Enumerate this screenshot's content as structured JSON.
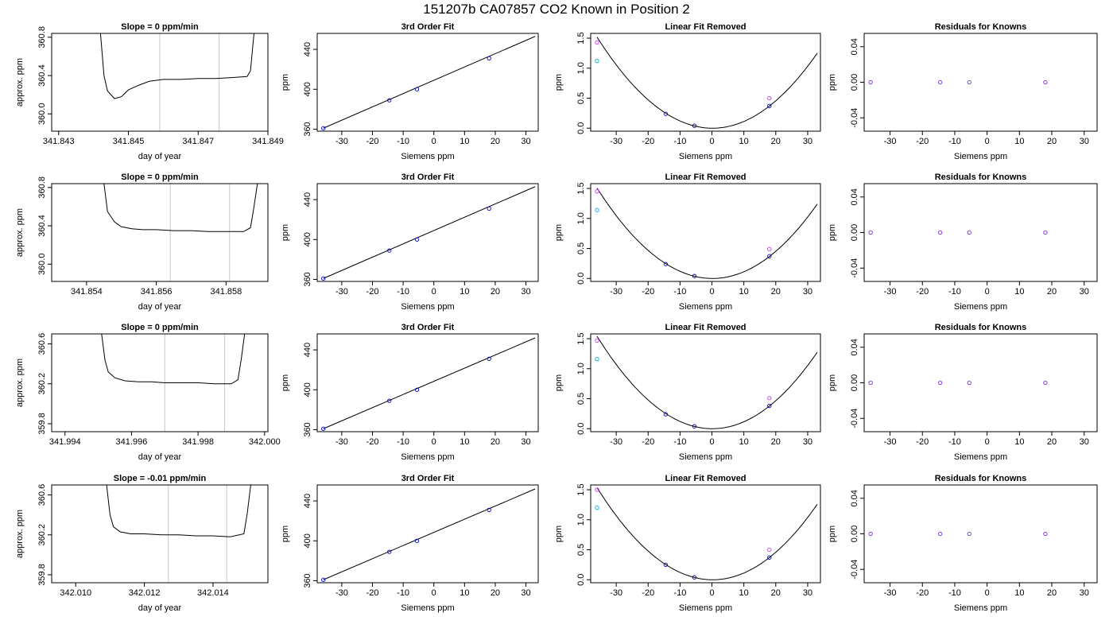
{
  "figure": {
    "title": "151207b     CA07857    CO2 Known in Position  2"
  },
  "chart_data": [
    {
      "type": "line",
      "title": "Slope =  0  ppm/min",
      "xlabel": "day of year",
      "ylabel": "approx. ppm",
      "xlim": [
        341.8428,
        341.849
      ],
      "ylim": [
        359.82,
        360.84
      ],
      "xticks": [
        341.843,
        341.845,
        341.847,
        341.849
      ],
      "xtick_labels": [
        "341.843",
        "341.845",
        "341.847",
        "341.849"
      ],
      "yticks": [
        360.0,
        360.4,
        360.8
      ],
      "ytick_labels": [
        "360.0",
        "360.4",
        "360.8"
      ],
      "vlines": [
        341.8459,
        341.8476
      ],
      "series": [
        {
          "x": [
            341.8442,
            341.8443,
            341.8444,
            341.8446,
            341.8448,
            341.845,
            341.8453,
            341.8456,
            341.846,
            341.8465,
            341.847,
            341.8475,
            341.848,
            341.8484,
            341.8485,
            341.8486
          ],
          "y": [
            360.84,
            360.4,
            360.24,
            360.16,
            360.18,
            360.25,
            360.3,
            360.34,
            360.36,
            360.36,
            360.37,
            360.37,
            360.38,
            360.39,
            360.45,
            360.84
          ]
        }
      ]
    },
    {
      "type": "scatter",
      "title": "3rd Order Fit",
      "xlabel": "Siemens ppm",
      "ylabel": "ppm",
      "xlim": [
        -38,
        34
      ],
      "ylim": [
        358,
        456
      ],
      "xticks": [
        -30,
        -20,
        -10,
        0,
        10,
        20,
        30
      ],
      "xtick_labels": [
        "-30",
        "-20",
        "-10",
        "0",
        "10",
        "20",
        "30"
      ],
      "yticks": [
        360,
        400,
        440
      ],
      "ytick_labels": [
        "360",
        "400",
        "440"
      ],
      "fit_line": {
        "x": [
          -36,
          33
        ],
        "y": [
          361,
          453
        ]
      },
      "points": {
        "x": [
          -36,
          -14.5,
          -5.5,
          18
        ],
        "y": [
          361,
          389,
          400,
          431
        ]
      }
    },
    {
      "type": "scatter",
      "title": "Linear Fit Removed",
      "xlabel": "Siemens ppm",
      "ylabel": "ppm",
      "xlim": [
        -38,
        34
      ],
      "ylim": [
        -0.05,
        1.58
      ],
      "xticks": [
        -30,
        -20,
        -10,
        0,
        10,
        20,
        30
      ],
      "xtick_labels": [
        "-30",
        "-20",
        "-10",
        "0",
        "10",
        "20",
        "30"
      ],
      "yticks": [
        0.0,
        0.5,
        1.0,
        1.5
      ],
      "ytick_labels": [
        "0.0",
        "0.5",
        "1.0",
        "1.5"
      ],
      "curve": {
        "a": 0.00116,
        "b": -0.0004,
        "c": 0.0
      },
      "points": [
        {
          "x": -36,
          "y": 1.43,
          "color": "#cc33ff"
        },
        {
          "x": -36,
          "y": 1.12,
          "color": "#00b0e0"
        },
        {
          "x": -14.5,
          "y": 0.24,
          "color": "#0000cc"
        },
        {
          "x": -5.5,
          "y": 0.04,
          "color": "#0000cc"
        },
        {
          "x": 18,
          "y": 0.37,
          "color": "#0000cc"
        },
        {
          "x": 18,
          "y": 0.5,
          "color": "#cc33ff"
        }
      ]
    },
    {
      "type": "scatter",
      "title": "Residuals for Knowns",
      "xlabel": "Siemens ppm",
      "ylabel": "ppm",
      "xlim": [
        -38,
        34
      ],
      "ylim": [
        -0.055,
        0.055
      ],
      "xticks": [
        -30,
        -20,
        -10,
        0,
        10,
        20,
        30
      ],
      "xtick_labels": [
        "-30",
        "-20",
        "-10",
        "0",
        "10",
        "20",
        "30"
      ],
      "yticks": [
        -0.04,
        0.0,
        0.04
      ],
      "ytick_labels": [
        "-0.04",
        "0.00",
        "0.04"
      ],
      "points": {
        "x": [
          -36,
          -14.5,
          -5.5,
          18
        ],
        "y": [
          0,
          0,
          0,
          0
        ]
      }
    },
    {
      "type": "line",
      "title": "Slope =  0  ppm/min",
      "xlabel": "day of year",
      "ylabel": "approx. ppm",
      "xlim": [
        341.853,
        341.8592
      ],
      "ylim": [
        359.82,
        360.84
      ],
      "xticks": [
        341.854,
        341.856,
        341.858
      ],
      "xtick_labels": [
        "341.854",
        "341.856",
        "341.858"
      ],
      "yticks": [
        360.0,
        360.4,
        360.8
      ],
      "ytick_labels": [
        "360.0",
        "360.4",
        "360.8"
      ],
      "vlines": [
        341.8564,
        341.8581
      ],
      "series": [
        {
          "x": [
            341.8545,
            341.8546,
            341.8548,
            341.855,
            341.8553,
            341.8556,
            341.856,
            341.8565,
            341.857,
            341.8575,
            341.858,
            341.8585,
            341.8587,
            341.8588,
            341.8589
          ],
          "y": [
            360.84,
            360.55,
            360.44,
            360.39,
            360.37,
            360.36,
            360.36,
            360.35,
            360.35,
            360.34,
            360.34,
            360.34,
            360.38,
            360.6,
            360.84
          ]
        }
      ]
    },
    {
      "type": "scatter",
      "title": "3rd Order Fit",
      "xlabel": "Siemens ppm",
      "ylabel": "ppm",
      "xlim": [
        -38,
        34
      ],
      "ylim": [
        358,
        456
      ],
      "xticks": [
        -30,
        -20,
        -10,
        0,
        10,
        20,
        30
      ],
      "xtick_labels": [
        "-30",
        "-20",
        "-10",
        "0",
        "10",
        "20",
        "30"
      ],
      "yticks": [
        360,
        400,
        440
      ],
      "ytick_labels": [
        "360",
        "400",
        "440"
      ],
      "fit_line": {
        "x": [
          -36,
          33
        ],
        "y": [
          361,
          453
        ]
      },
      "points": {
        "x": [
          -36,
          -14.5,
          -5.5,
          18
        ],
        "y": [
          361,
          389,
          400,
          431
        ]
      }
    },
    {
      "type": "scatter",
      "title": "Linear Fit Removed",
      "xlabel": "Siemens ppm",
      "ylabel": "ppm",
      "xlim": [
        -38,
        34
      ],
      "ylim": [
        -0.05,
        1.58
      ],
      "xticks": [
        -30,
        -20,
        -10,
        0,
        10,
        20,
        30
      ],
      "xtick_labels": [
        "-30",
        "-20",
        "-10",
        "0",
        "10",
        "20",
        "30"
      ],
      "yticks": [
        0.0,
        0.5,
        1.0,
        1.5
      ],
      "ytick_labels": [
        "0.0",
        "0.5",
        "1.0",
        "1.5"
      ],
      "curve": {
        "a": 0.00115,
        "b": -0.0004,
        "c": 0.0
      },
      "points": [
        {
          "x": -36,
          "y": 1.45,
          "color": "#cc33ff"
        },
        {
          "x": -36,
          "y": 1.14,
          "color": "#00b0e0"
        },
        {
          "x": -14.5,
          "y": 0.24,
          "color": "#0000cc"
        },
        {
          "x": -5.5,
          "y": 0.04,
          "color": "#0000cc"
        },
        {
          "x": 18,
          "y": 0.37,
          "color": "#0000cc"
        },
        {
          "x": 18,
          "y": 0.49,
          "color": "#cc33ff"
        }
      ]
    },
    {
      "type": "scatter",
      "title": "Residuals for Knowns",
      "xlabel": "Siemens ppm",
      "ylabel": "ppm",
      "xlim": [
        -38,
        34
      ],
      "ylim": [
        -0.055,
        0.055
      ],
      "xticks": [
        -30,
        -20,
        -10,
        0,
        10,
        20,
        30
      ],
      "xtick_labels": [
        "-30",
        "-20",
        "-10",
        "0",
        "10",
        "20",
        "30"
      ],
      "yticks": [
        -0.04,
        0.0,
        0.04
      ],
      "ytick_labels": [
        "-0.04",
        "0.00",
        "0.04"
      ],
      "points": {
        "x": [
          -36,
          -14.5,
          -5.5,
          18
        ],
        "y": [
          0,
          0,
          0,
          0
        ]
      }
    },
    {
      "type": "line",
      "title": "Slope =  0  ppm/min",
      "xlabel": "day of year",
      "ylabel": "approx. ppm",
      "xlim": [
        341.9936,
        342.0001
      ],
      "ylim": [
        359.72,
        360.7
      ],
      "xticks": [
        341.994,
        341.996,
        341.998,
        342.0
      ],
      "xtick_labels": [
        "341.994",
        "341.996",
        "341.998",
        "342.000"
      ],
      "yticks": [
        359.8,
        360.2,
        360.6
      ],
      "ytick_labels": [
        "359.8",
        "360.2",
        "360.6"
      ],
      "vlines": [
        341.997,
        341.9988
      ],
      "series": [
        {
          "x": [
            341.9951,
            341.9952,
            341.9953,
            341.9955,
            341.9958,
            341.9962,
            341.9966,
            341.997,
            341.9975,
            341.998,
            341.9985,
            341.999,
            341.9992,
            341.9993,
            341.9994
          ],
          "y": [
            360.7,
            360.44,
            360.32,
            360.26,
            360.23,
            360.22,
            360.22,
            360.21,
            360.21,
            360.21,
            360.2,
            360.2,
            360.24,
            360.45,
            360.7
          ]
        }
      ]
    },
    {
      "type": "scatter",
      "title": "3rd Order Fit",
      "xlabel": "Siemens ppm",
      "ylabel": "ppm",
      "xlim": [
        -38,
        34
      ],
      "ylim": [
        358,
        456
      ],
      "xticks": [
        -30,
        -20,
        -10,
        0,
        10,
        20,
        30
      ],
      "xtick_labels": [
        "-30",
        "-20",
        "-10",
        "0",
        "10",
        "20",
        "30"
      ],
      "yticks": [
        360,
        400,
        440
      ],
      "ytick_labels": [
        "360",
        "400",
        "440"
      ],
      "fit_line": {
        "x": [
          -36,
          33
        ],
        "y": [
          361,
          452
        ]
      },
      "points": {
        "x": [
          -36,
          -14.5,
          -5.5,
          18
        ],
        "y": [
          361,
          389,
          400,
          431
        ]
      }
    },
    {
      "type": "scatter",
      "title": "Linear Fit Removed",
      "xlabel": "Siemens ppm",
      "ylabel": "ppm",
      "xlim": [
        -38,
        34
      ],
      "ylim": [
        -0.05,
        1.58
      ],
      "xticks": [
        -30,
        -20,
        -10,
        0,
        10,
        20,
        30
      ],
      "xtick_labels": [
        "-30",
        "-20",
        "-10",
        "0",
        "10",
        "20",
        "30"
      ],
      "yticks": [
        0.0,
        0.5,
        1.0,
        1.5
      ],
      "ytick_labels": [
        "0.0",
        "0.5",
        "1.0",
        "1.5"
      ],
      "curve": {
        "a": 0.00118,
        "b": -0.0003,
        "c": 0.0
      },
      "points": [
        {
          "x": -36,
          "y": 1.47,
          "color": "#cc33ff"
        },
        {
          "x": -36,
          "y": 1.16,
          "color": "#00b0e0"
        },
        {
          "x": -14.5,
          "y": 0.24,
          "color": "#0000cc"
        },
        {
          "x": -5.5,
          "y": 0.04,
          "color": "#0000cc"
        },
        {
          "x": 18,
          "y": 0.38,
          "color": "#0000cc"
        },
        {
          "x": 18,
          "y": 0.51,
          "color": "#cc33ff"
        }
      ]
    },
    {
      "type": "scatter",
      "title": "Residuals for Knowns",
      "xlabel": "Siemens ppm",
      "ylabel": "ppm",
      "xlim": [
        -38,
        34
      ],
      "ylim": [
        -0.055,
        0.055
      ],
      "xticks": [
        -30,
        -20,
        -10,
        0,
        10,
        20,
        30
      ],
      "xtick_labels": [
        "-30",
        "-20",
        "-10",
        "0",
        "10",
        "20",
        "30"
      ],
      "yticks": [
        -0.04,
        0.0,
        0.04
      ],
      "ytick_labels": [
        "-0.04",
        "0.00",
        "0.04"
      ],
      "points": {
        "x": [
          -36,
          -14.5,
          -5.5,
          18
        ],
        "y": [
          0,
          0,
          0,
          0
        ]
      }
    },
    {
      "type": "line",
      "title": "Slope =  -0.01  ppm/min",
      "xlabel": "day of year",
      "ylabel": "approx. ppm",
      "xlim": [
        342.0093,
        342.0156
      ],
      "ylim": [
        359.72,
        360.7
      ],
      "xticks": [
        342.01,
        342.012,
        342.014
      ],
      "xtick_labels": [
        "342.010",
        "342.012",
        "342.014"
      ],
      "yticks": [
        359.8,
        360.2,
        360.6
      ],
      "ytick_labels": [
        "359.8",
        "360.2",
        "360.6"
      ],
      "vlines": [
        342.0127,
        342.0144
      ],
      "series": [
        {
          "x": [
            342.0109,
            342.011,
            342.0111,
            342.0113,
            342.0116,
            342.012,
            342.0125,
            342.013,
            342.0135,
            342.014,
            342.0145,
            342.0149,
            342.015,
            342.0151
          ],
          "y": [
            360.7,
            360.4,
            360.28,
            360.23,
            360.21,
            360.21,
            360.2,
            360.2,
            360.19,
            360.19,
            360.18,
            360.21,
            360.42,
            360.7
          ]
        }
      ]
    },
    {
      "type": "scatter",
      "title": "3rd Order Fit",
      "xlabel": "Siemens ppm",
      "ylabel": "ppm",
      "xlim": [
        -38,
        34
      ],
      "ylim": [
        358,
        456
      ],
      "xticks": [
        -30,
        -20,
        -10,
        0,
        10,
        20,
        30
      ],
      "xtick_labels": [
        "-30",
        "-20",
        "-10",
        "0",
        "10",
        "20",
        "30"
      ],
      "yticks": [
        360,
        400,
        440
      ],
      "ytick_labels": [
        "360",
        "400",
        "440"
      ],
      "fit_line": {
        "x": [
          -36,
          33
        ],
        "y": [
          361,
          452
        ]
      },
      "points": {
        "x": [
          -36,
          -14.5,
          -5.5,
          18
        ],
        "y": [
          361,
          389,
          400,
          431
        ]
      }
    },
    {
      "type": "scatter",
      "title": "Linear Fit Removed",
      "xlabel": "Siemens ppm",
      "ylabel": "ppm",
      "xlim": [
        -38,
        34
      ],
      "ylim": [
        -0.05,
        1.58
      ],
      "xticks": [
        -30,
        -20,
        -10,
        0,
        10,
        20,
        30
      ],
      "xtick_labels": [
        "-30",
        "-20",
        "-10",
        "0",
        "10",
        "20",
        "30"
      ],
      "yticks": [
        0.0,
        0.5,
        1.0,
        1.5
      ],
      "ytick_labels": [
        "0.0",
        "0.5",
        "1.0",
        "1.5"
      ],
      "curve": {
        "a": 0.00117,
        "b": -0.0005,
        "c": 0.0
      },
      "points": [
        {
          "x": -36,
          "y": 1.5,
          "color": "#cc33ff"
        },
        {
          "x": -36,
          "y": 1.2,
          "color": "#00b0e0"
        },
        {
          "x": -14.5,
          "y": 0.25,
          "color": "#0000cc"
        },
        {
          "x": -5.5,
          "y": 0.04,
          "color": "#0000cc"
        },
        {
          "x": 18,
          "y": 0.37,
          "color": "#0000cc"
        },
        {
          "x": 18,
          "y": 0.5,
          "color": "#cc33ff"
        }
      ]
    },
    {
      "type": "scatter",
      "title": "Residuals for Knowns",
      "xlabel": "Siemens ppm",
      "ylabel": "ppm",
      "xlim": [
        -38,
        34
      ],
      "ylim": [
        -0.055,
        0.055
      ],
      "xticks": [
        -30,
        -20,
        -10,
        0,
        10,
        20,
        30
      ],
      "xtick_labels": [
        "-30",
        "-20",
        "-10",
        "0",
        "10",
        "20",
        "30"
      ],
      "yticks": [
        -0.04,
        0.0,
        0.04
      ],
      "ytick_labels": [
        "-0.04",
        "0.00",
        "0.04"
      ],
      "points": {
        "x": [
          -36,
          -14.5,
          -5.5,
          18
        ],
        "y": [
          0,
          0,
          0,
          0
        ]
      }
    }
  ],
  "colors": {
    "line": "#000000",
    "vline": "#c8c8c8",
    "point_blue": "#0000cc",
    "point_cyan": "#00b0e0",
    "point_magenta": "#cc33ff",
    "point_purple": "#7a2be0"
  }
}
